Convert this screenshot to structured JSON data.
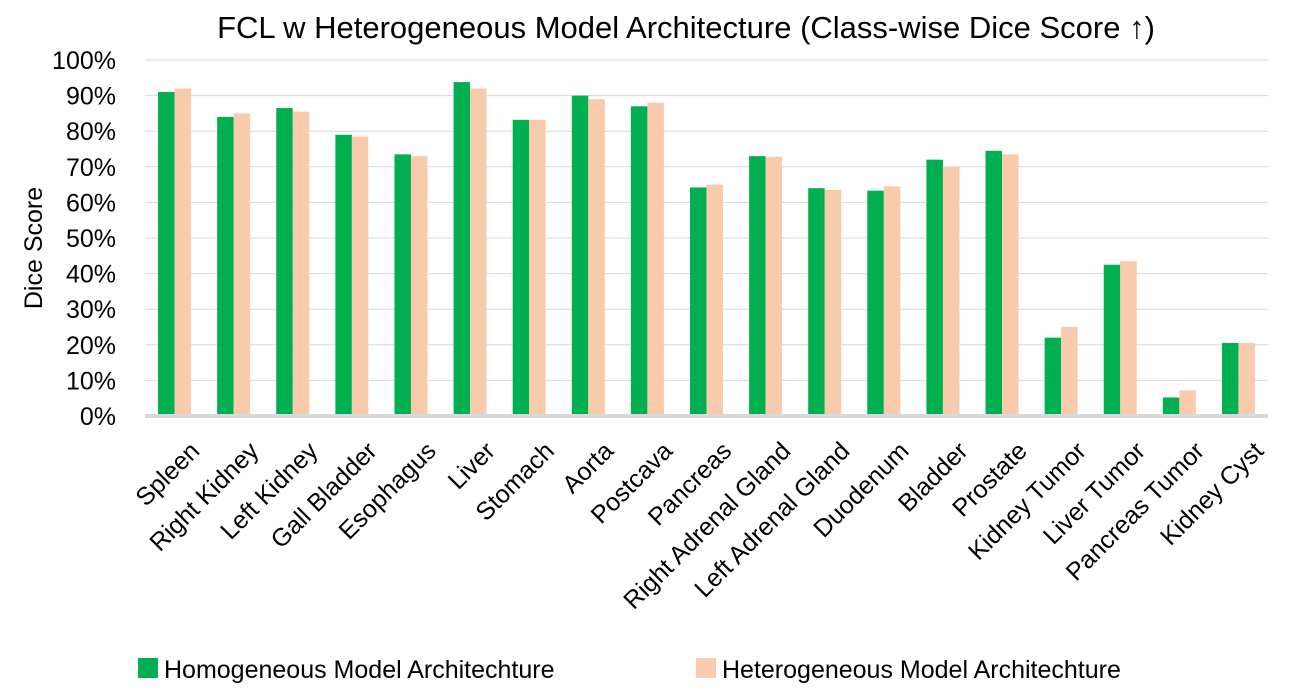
{
  "chart_data": {
    "type": "bar",
    "title": "FCL w Heterogeneous Model Architecture (Class-wise Dice Score ↑)",
    "ylabel": "Dice Score",
    "xlabel": "",
    "ylim": [
      0,
      100
    ],
    "yticks": [
      "0%",
      "10%",
      "20%",
      "30%",
      "40%",
      "50%",
      "60%",
      "70%",
      "80%",
      "90%",
      "100%"
    ],
    "grid": true,
    "legend_position": "bottom",
    "categories": [
      "Spleen",
      "Right Kidney",
      "Left Kidney",
      "Gall Bladder",
      "Esophagus",
      "Liver",
      "Stomach",
      "Aorta",
      "Postcava",
      "Pancreas",
      "Right Adrenal Gland",
      "Left Adrenal Gland",
      "Duodenum",
      "Bladder",
      "Prostate",
      "Kidney Tumor",
      "Liver Tumor",
      "Pancreas Tumor",
      "Kidney Cyst"
    ],
    "series": [
      {
        "name": "Homogeneous Model Architechture",
        "color": "#00b050",
        "values": [
          91.0,
          84.0,
          86.5,
          79.0,
          73.5,
          93.8,
          83.2,
          90.0,
          87.0,
          64.2,
          73.0,
          64.0,
          63.3,
          72.0,
          74.5,
          22.0,
          42.5,
          5.2,
          20.5
        ]
      },
      {
        "name": "Heterogeneous Model Architechture",
        "color": "#f8cbad",
        "values": [
          92.0,
          85.0,
          85.5,
          78.5,
          73.0,
          92.0,
          83.2,
          89.0,
          88.0,
          65.0,
          72.8,
          63.5,
          64.5,
          70.0,
          73.5,
          25.0,
          43.5,
          7.2,
          20.5
        ]
      }
    ]
  }
}
